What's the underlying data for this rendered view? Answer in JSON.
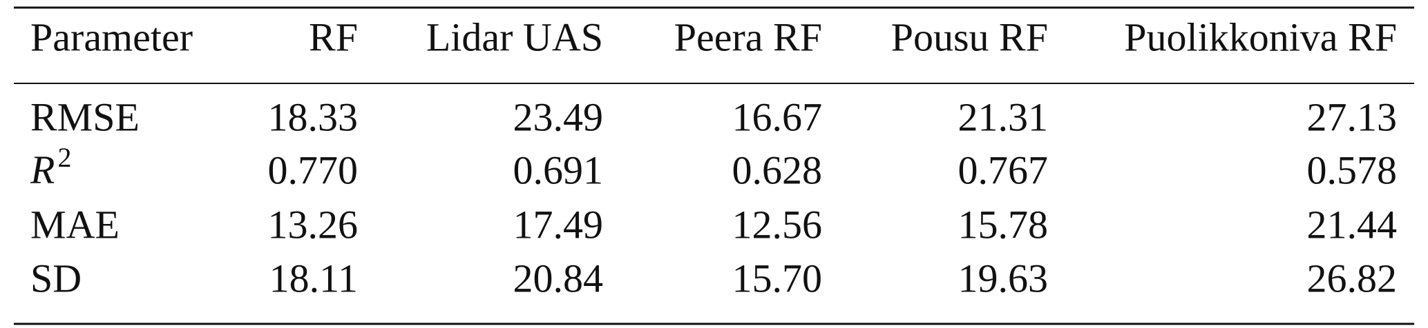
{
  "table": {
    "header": [
      "Parameter",
      "RF",
      "Lidar UAS",
      "Peera RF",
      "Pousu RF",
      "Puolikkoniva RF"
    ],
    "rows": [
      {
        "label": "RMSE",
        "values": [
          "18.33",
          "23.49",
          "16.67",
          "21.31",
          "27.13"
        ]
      },
      {
        "label": "R",
        "superscript": "2",
        "values": [
          "0.770",
          "0.691",
          "0.628",
          "0.767",
          "0.578"
        ]
      },
      {
        "label": "MAE",
        "values": [
          "13.26",
          "17.49",
          "12.56",
          "15.78",
          "21.44"
        ]
      },
      {
        "label": "SD",
        "values": [
          "18.11",
          "20.84",
          "15.70",
          "19.63",
          "26.82"
        ]
      }
    ]
  }
}
